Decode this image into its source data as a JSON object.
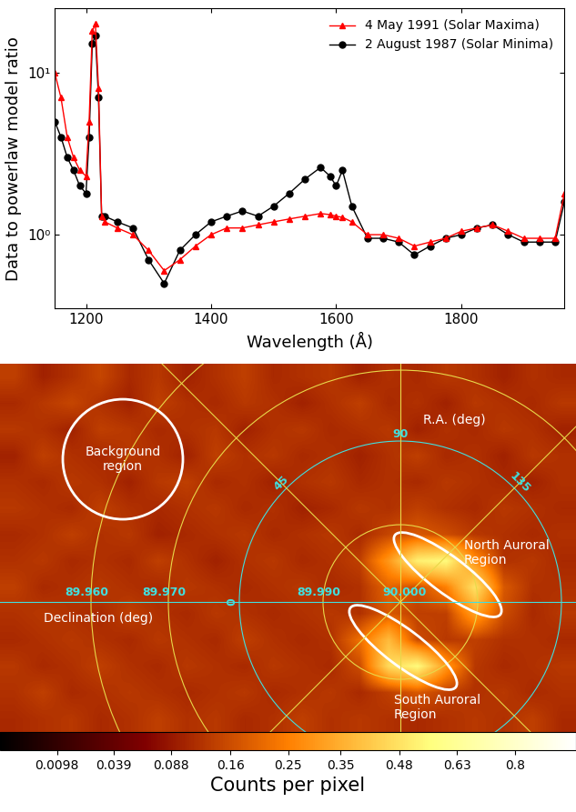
{
  "chart_data": [
    {
      "type": "scatter",
      "xlabel": "Wavelength (Å)",
      "ylabel": "Data to powerlaw model ratio",
      "log": "y",
      "legend": "upper right",
      "xlim": [
        1150,
        1965
      ],
      "ylim": [
        0.35,
        25
      ],
      "xticks": [
        1200,
        1400,
        1600,
        1800
      ],
      "yticks": [
        {
          "value": 1,
          "label": "10⁰"
        },
        {
          "value": 10,
          "label": "10¹"
        }
      ],
      "x": [
        1150,
        1160,
        1170,
        1180,
        1190,
        1200,
        1205,
        1210,
        1215,
        1220,
        1225,
        1230,
        1250,
        1275,
        1300,
        1325,
        1350,
        1375,
        1400,
        1425,
        1450,
        1475,
        1500,
        1525,
        1550,
        1575,
        1590,
        1600,
        1610,
        1625,
        1650,
        1675,
        1700,
        1725,
        1750,
        1775,
        1800,
        1825,
        1850,
        1875,
        1900,
        1925,
        1950,
        1965
      ],
      "series": [
        {
          "name": "4 May 1991 (Solar Maxima)",
          "color": "#ff0000",
          "marker": "triangle",
          "line_style": "solid",
          "values": [
            10,
            7,
            4,
            3,
            2.5,
            2.3,
            5,
            18,
            20,
            8,
            1.3,
            1.2,
            1.1,
            1.0,
            0.8,
            0.6,
            0.7,
            0.85,
            1.0,
            1.1,
            1.1,
            1.15,
            1.2,
            1.25,
            1.3,
            1.35,
            1.33,
            1.3,
            1.28,
            1.2,
            1.0,
            1.0,
            0.95,
            0.85,
            0.9,
            0.95,
            1.05,
            1.1,
            1.15,
            1.05,
            0.95,
            0.95,
            0.95,
            1.8
          ]
        },
        {
          "name": "2 August 1987 (Solar Minima)",
          "color": "#000000",
          "marker": "circle",
          "line_style": "solid",
          "values": [
            5,
            4,
            3,
            2.5,
            2.0,
            1.8,
            4,
            15,
            17,
            7,
            1.3,
            1.3,
            1.2,
            1.1,
            0.7,
            0.5,
            0.8,
            1.0,
            1.2,
            1.3,
            1.4,
            1.3,
            1.5,
            1.8,
            2.2,
            2.6,
            2.3,
            2.0,
            2.5,
            1.5,
            0.95,
            0.95,
            0.9,
            0.75,
            0.85,
            0.95,
            1.0,
            1.1,
            1.15,
            1.0,
            0.9,
            0.9,
            0.9,
            1.6
          ]
        }
      ]
    },
    {
      "type": "heatmap",
      "color": "afmhot",
      "cells": [
        [
          0.14,
          0.1,
          0.12,
          0.15,
          0.11,
          0.13,
          0.1,
          0.12,
          0.14,
          0.11,
          0.12,
          0.13,
          0.1,
          0.12,
          0.11,
          0.13,
          0.12,
          0.1,
          0.12,
          0.11
        ],
        [
          0.11,
          0.13,
          0.15,
          0.12,
          0.1,
          0.14,
          0.12,
          0.11,
          0.13,
          0.12,
          0.1,
          0.12,
          0.14,
          0.11,
          0.12,
          0.1,
          0.13,
          0.12,
          0.11,
          0.13
        ],
        [
          0.13,
          0.12,
          0.1,
          0.14,
          0.13,
          0.11,
          0.12,
          0.13,
          0.1,
          0.12,
          0.13,
          0.11,
          0.12,
          0.13,
          0.1,
          0.12,
          0.11,
          0.13,
          0.12,
          0.1
        ],
        [
          0.1,
          0.14,
          0.12,
          0.11,
          0.13,
          0.12,
          0.1,
          0.14,
          0.12,
          0.13,
          0.11,
          0.12,
          0.1,
          0.12,
          0.14,
          0.11,
          0.12,
          0.1,
          0.13,
          0.12
        ],
        [
          0.12,
          0.11,
          0.13,
          0.12,
          0.1,
          0.13,
          0.14,
          0.11,
          0.12,
          0.1,
          0.12,
          0.13,
          0.11,
          0.12,
          0.11,
          0.13,
          0.12,
          0.11,
          0.1,
          0.12
        ],
        [
          0.13,
          0.12,
          0.11,
          0.14,
          0.12,
          0.11,
          0.12,
          0.13,
          0.11,
          0.12,
          0.1,
          0.11,
          0.13,
          0.12,
          0.14,
          0.12,
          0.11,
          0.13,
          0.12,
          0.11
        ],
        [
          0.11,
          0.12,
          0.14,
          0.12,
          0.13,
          0.1,
          0.11,
          0.12,
          0.13,
          0.11,
          0.12,
          0.13,
          0.11,
          0.15,
          0.18,
          0.16,
          0.13,
          0.12,
          0.11,
          0.12
        ],
        [
          0.12,
          0.13,
          0.11,
          0.12,
          0.11,
          0.14,
          0.12,
          0.1,
          0.12,
          0.13,
          0.11,
          0.12,
          0.14,
          0.3,
          0.52,
          0.55,
          0.28,
          0.12,
          0.13,
          0.11
        ],
        [
          0.14,
          0.11,
          0.12,
          0.13,
          0.12,
          0.11,
          0.13,
          0.12,
          0.11,
          0.12,
          0.13,
          0.11,
          0.12,
          0.2,
          0.16,
          0.25,
          0.48,
          0.18,
          0.12,
          0.12
        ],
        [
          0.12,
          0.13,
          0.12,
          0.11,
          0.14,
          0.12,
          0.11,
          0.13,
          0.12,
          0.11,
          0.12,
          0.13,
          0.12,
          0.18,
          0.14,
          0.14,
          0.32,
          0.16,
          0.11,
          0.13
        ],
        [
          0.11,
          0.12,
          0.13,
          0.12,
          0.11,
          0.13,
          0.12,
          0.11,
          0.14,
          0.12,
          0.11,
          0.12,
          0.22,
          0.38,
          0.16,
          0.13,
          0.14,
          0.12,
          0.12,
          0.11
        ],
        [
          0.13,
          0.11,
          0.12,
          0.14,
          0.12,
          0.11,
          0.13,
          0.12,
          0.11,
          0.13,
          0.12,
          0.11,
          0.16,
          0.46,
          0.55,
          0.3,
          0.13,
          0.11,
          0.12,
          0.13
        ],
        [
          0.12,
          0.14,
          0.11,
          0.12,
          0.13,
          0.12,
          0.11,
          0.12,
          0.13,
          0.11,
          0.12,
          0.13,
          0.11,
          0.14,
          0.18,
          0.14,
          0.12,
          0.13,
          0.11,
          0.12
        ],
        [
          0.11,
          0.12,
          0.13,
          0.11,
          0.12,
          0.14,
          0.12,
          0.13,
          0.11,
          0.12,
          0.14,
          0.12,
          0.13,
          0.12,
          0.11,
          0.12,
          0.13,
          0.12,
          0.14,
          0.11
        ]
      ],
      "colorbar_range": [
        0,
        1
      ],
      "colorbar_ticks": [
        0.0098,
        0.039,
        0.088,
        0.16,
        0.25,
        0.35,
        0.48,
        0.63,
        0.8
      ],
      "colorbar_label": "Counts per pixel",
      "ra_label": "R.A. (deg)",
      "dec_label": "Declination (deg)",
      "ra_ticks": [
        0,
        45,
        90,
        135
      ],
      "dec_ticks": [
        {
          "value": 89.96,
          "label": "89.960"
        },
        {
          "value": 89.97,
          "label": "89.970"
        },
        {
          "value": 89.99,
          "label": "89.990"
        },
        {
          "value": 90.0,
          "label": "90.000"
        }
      ],
      "regions": {
        "background": "Background\nregion",
        "north": "North Auroral\nRegion",
        "south": "South Auroral\nRegion"
      }
    }
  ]
}
